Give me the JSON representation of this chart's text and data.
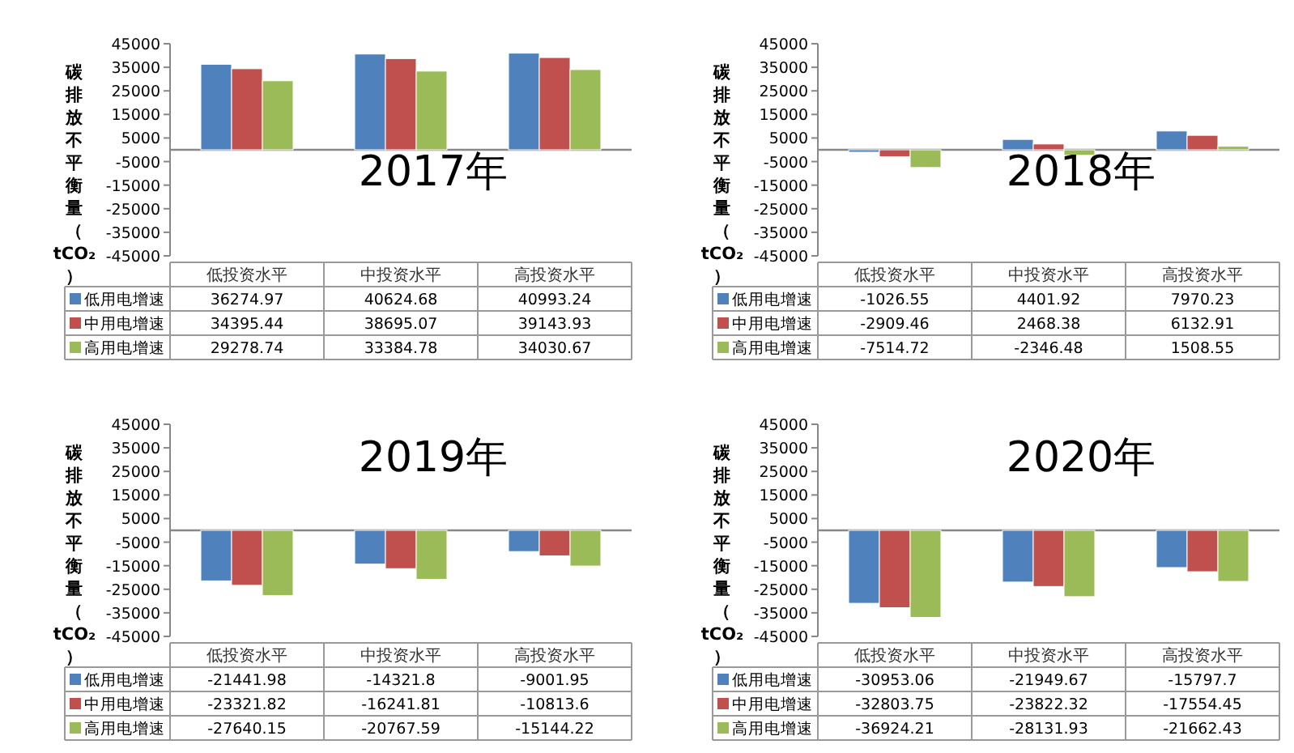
{
  "chart_data": [
    {
      "type": "bar",
      "title": "2017年",
      "ylabel": "碳排放不平衡量（tCO₂）",
      "categories": [
        "低投资水平",
        "中投资水平",
        "高投资水平"
      ],
      "ylim": [
        -45000,
        45000
      ],
      "yticks": [
        45000,
        35000,
        25000,
        15000,
        5000,
        -5000,
        -15000,
        -25000,
        -35000,
        -45000
      ],
      "data_labels": true,
      "legend": "bottom",
      "series": [
        {
          "name": "低用电增速",
          "color": "#4f81bd",
          "values": [
            36274.97,
            40624.68,
            40993.24
          ]
        },
        {
          "name": "中用电增速",
          "color": "#c0504d",
          "values": [
            34395.44,
            38695.07,
            39143.93
          ]
        },
        {
          "name": "高用电增速",
          "color": "#9bbb59",
          "values": [
            29278.74,
            33384.78,
            34030.67
          ]
        }
      ]
    },
    {
      "type": "bar",
      "title": "2018年",
      "ylabel": "碳排放不平衡量（tCO₂）",
      "categories": [
        "低投资水平",
        "中投资水平",
        "高投资水平"
      ],
      "ylim": [
        -45000,
        45000
      ],
      "yticks": [
        45000,
        35000,
        25000,
        15000,
        5000,
        -5000,
        -15000,
        -25000,
        -35000,
        -45000
      ],
      "data_labels": true,
      "legend": "bottom",
      "series": [
        {
          "name": "低用电增速",
          "color": "#4f81bd",
          "values": [
            -1026.55,
            4401.92,
            7970.23
          ]
        },
        {
          "name": "中用电增速",
          "color": "#c0504d",
          "values": [
            -2909.46,
            2468.38,
            6132.91
          ]
        },
        {
          "name": "高用电增速",
          "color": "#9bbb59",
          "values": [
            -7514.72,
            -2346.48,
            1508.55
          ]
        }
      ]
    },
    {
      "type": "bar",
      "title": "2019年",
      "ylabel": "碳排放不平衡量（tCO₂）",
      "categories": [
        "低投资水平",
        "中投资水平",
        "高投资水平"
      ],
      "ylim": [
        -45000,
        45000
      ],
      "yticks": [
        45000,
        35000,
        25000,
        15000,
        5000,
        -5000,
        -15000,
        -25000,
        -35000,
        -45000
      ],
      "data_labels": true,
      "legend": "bottom",
      "series": [
        {
          "name": "低用电增速",
          "color": "#4f81bd",
          "values": [
            -21441.98,
            -14321.8,
            -9001.95
          ]
        },
        {
          "name": "中用电增速",
          "color": "#c0504d",
          "values": [
            -23321.82,
            -16241.81,
            -10813.6
          ]
        },
        {
          "name": "高用电增速",
          "color": "#9bbb59",
          "values": [
            -27640.15,
            -20767.59,
            -15144.22
          ]
        }
      ]
    },
    {
      "type": "bar",
      "title": "2020年",
      "ylabel": "碳排放不平衡量（tCO₂）",
      "categories": [
        "低投资水平",
        "中投资水平",
        "高投资水平"
      ],
      "ylim": [
        -45000,
        45000
      ],
      "yticks": [
        45000,
        35000,
        25000,
        15000,
        5000,
        -5000,
        -15000,
        -25000,
        -35000,
        -45000
      ],
      "data_labels": true,
      "legend": "bottom",
      "series": [
        {
          "name": "低用电增速",
          "color": "#4f81bd",
          "values": [
            -30953.06,
            -21949.67,
            -15797.7
          ]
        },
        {
          "name": "中用电增速",
          "color": "#c0504d",
          "values": [
            -32803.75,
            -23822.32,
            -17554.45
          ]
        },
        {
          "name": "高用电增速",
          "color": "#9bbb59",
          "values": [
            -36924.21,
            -28131.93,
            -21662.43
          ]
        }
      ]
    }
  ]
}
